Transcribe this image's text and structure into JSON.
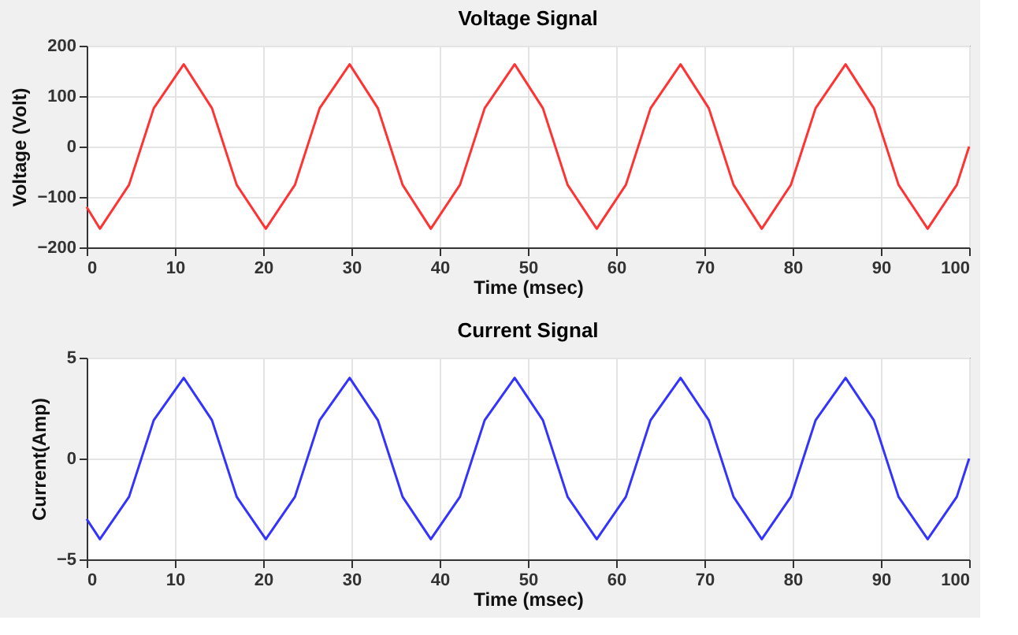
{
  "chart_data": [
    {
      "type": "line",
      "title": "Voltage Signal",
      "xlabel": "Time (msec)",
      "ylabel": "Voltage (Volt)",
      "x": [
        0,
        1.5,
        4.8,
        7.6,
        11,
        14.2,
        17,
        20.3,
        23.6,
        26.4,
        29.8,
        33,
        35.8,
        39,
        42.3,
        45.1,
        48.5,
        51.7,
        54.5,
        57.8,
        61.1,
        63.9,
        67.3,
        70.5,
        73.3,
        76.5,
        79.8,
        82.6,
        86,
        89.2,
        92,
        95.3,
        98.6,
        100
      ],
      "series": [
        {
          "color": "#ff3333",
          "values": [
            -120,
            -163,
            -76,
            76,
            163,
            76,
            -76,
            -163,
            -76,
            76,
            163,
            76,
            -76,
            -163,
            -76,
            76,
            163,
            76,
            -76,
            -163,
            -76,
            76,
            163,
            76,
            -76,
            -163,
            -76,
            76,
            163,
            76,
            -76,
            -163,
            -76,
            0
          ]
        }
      ],
      "xlim": [
        0,
        100
      ],
      "xticks": [
        0,
        10,
        20,
        30,
        40,
        50,
        60,
        70,
        80,
        90,
        100
      ],
      "ylim": [
        -200,
        200
      ],
      "yticks": [
        -200,
        -100,
        0,
        100,
        200
      ],
      "grid": true,
      "line_style": "solid",
      "marker": "none"
    },
    {
      "type": "line",
      "title": "Current Signal",
      "xlabel": "Time (msec)",
      "ylabel": "Current(Amp)",
      "x": [
        0,
        1.5,
        4.8,
        7.6,
        11,
        14.2,
        17,
        20.3,
        23.6,
        26.4,
        29.8,
        33,
        35.8,
        39,
        42.3,
        45.1,
        48.5,
        51.7,
        54.5,
        57.8,
        61.1,
        63.9,
        67.3,
        70.5,
        73.3,
        76.5,
        79.8,
        82.6,
        86,
        89.2,
        92,
        95.3,
        98.6,
        100
      ],
      "series": [
        {
          "color": "#3333ff",
          "values": [
            -3,
            -4,
            -1.9,
            1.9,
            4,
            1.9,
            -1.9,
            -4,
            -1.9,
            1.9,
            4,
            1.9,
            -1.9,
            -4,
            -1.9,
            1.9,
            4,
            1.9,
            -1.9,
            -4,
            -1.9,
            1.9,
            4,
            1.9,
            -1.9,
            -4,
            -1.9,
            1.9,
            4,
            1.9,
            -1.9,
            -4,
            -1.9,
            0
          ]
        }
      ],
      "xlim": [
        0,
        100
      ],
      "xticks": [
        0,
        10,
        20,
        30,
        40,
        50,
        60,
        70,
        80,
        90,
        100
      ],
      "ylim": [
        -5,
        5
      ],
      "yticks": [
        -5,
        0,
        5
      ],
      "grid": true,
      "line_style": "solid",
      "marker": "none"
    }
  ]
}
